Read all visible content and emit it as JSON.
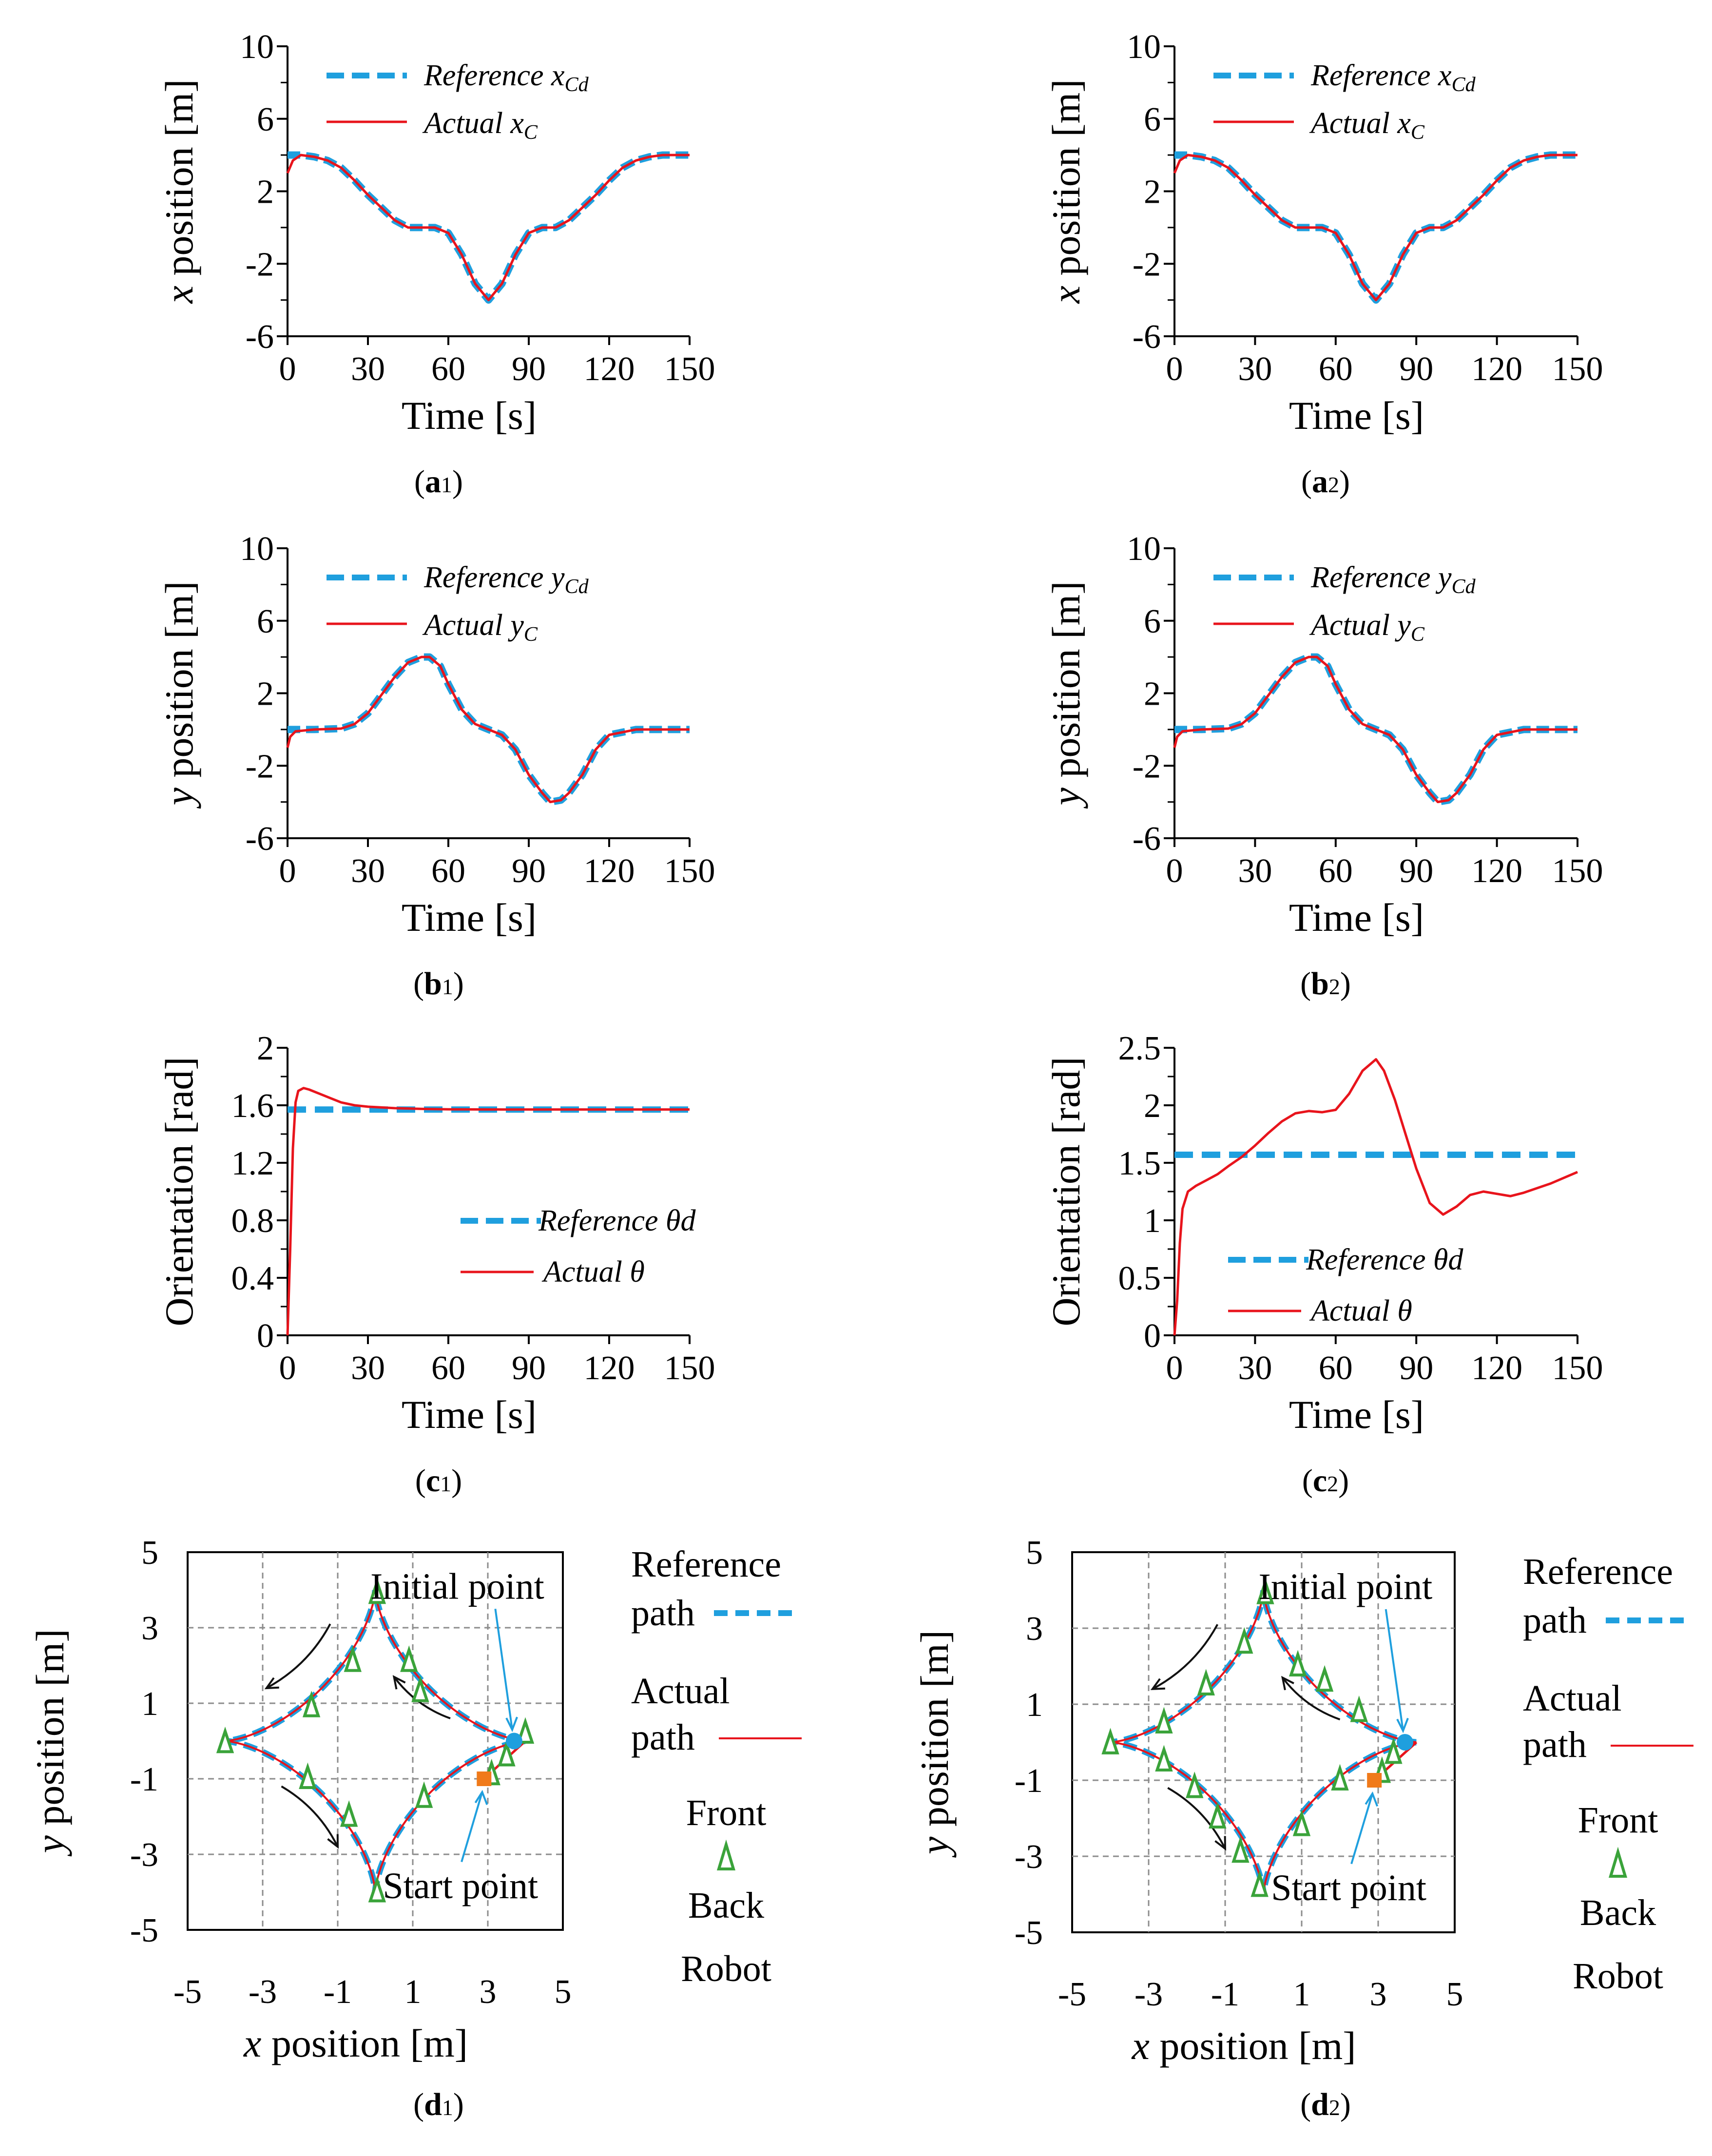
{
  "figure": {
    "colors": {
      "reference": "#1f9fde",
      "actual": "#e8141c",
      "robot_marker": "#3aa33a",
      "initial_point": "#1f9fde",
      "start_point": "#f07a1a",
      "grid": "#8c8c8c",
      "arrow": "#111111"
    }
  },
  "chart_data": [
    {
      "id": "a1",
      "type": "line",
      "caption_letter": "a",
      "caption_sub": "1",
      "xlabel": "Time [s]",
      "ylabel_var": "x",
      "ylabel_rest": " position [m]",
      "xlim": [
        0,
        150
      ],
      "ylim": [
        -6,
        10
      ],
      "xticks": [
        "0",
        "30",
        "60",
        "90",
        "120",
        "150"
      ],
      "yticks": [
        "-6",
        "-2",
        "2",
        "6",
        "10"
      ],
      "legend": {
        "reference": "Reference",
        "reference_sym": "x",
        "reference_sub": "Cd",
        "actual": "Actual",
        "actual_sym": "x",
        "actual_sub": "C"
      },
      "series": [
        {
          "name": "Reference x_Cd",
          "style": "dashed",
          "x": [
            0,
            5,
            10,
            15,
            20,
            25,
            30,
            35,
            40,
            45,
            50,
            55,
            60,
            65,
            70,
            75,
            80,
            85,
            90,
            95,
            100,
            105,
            110,
            115,
            120,
            125,
            130,
            135,
            140,
            145,
            150
          ],
          "y": [
            4,
            4,
            3.9,
            3.7,
            3.3,
            2.6,
            1.8,
            1.1,
            0.4,
            0,
            0,
            0,
            -0.3,
            -1.5,
            -3.1,
            -4,
            -3.1,
            -1.5,
            -0.3,
            0,
            0,
            0.4,
            1.1,
            1.8,
            2.6,
            3.3,
            3.7,
            3.9,
            4,
            4,
            4
          ]
        },
        {
          "name": "Actual x_C",
          "style": "solid",
          "x": [
            0,
            2,
            5,
            10,
            15,
            20,
            25,
            30,
            35,
            40,
            45,
            50,
            55,
            60,
            65,
            70,
            75,
            80,
            85,
            90,
            95,
            100,
            105,
            110,
            115,
            120,
            125,
            130,
            135,
            140,
            145,
            150
          ],
          "y": [
            3,
            3.7,
            4,
            3.9,
            3.7,
            3.3,
            2.6,
            1.8,
            1.1,
            0.4,
            0,
            0,
            0,
            -0.3,
            -1.5,
            -3.1,
            -4,
            -3.1,
            -1.5,
            -0.3,
            0,
            0,
            0.4,
            1.1,
            1.8,
            2.6,
            3.3,
            3.7,
            3.9,
            4,
            4,
            4
          ]
        }
      ]
    },
    {
      "id": "a2",
      "type": "line",
      "caption_letter": "a",
      "caption_sub": "2",
      "xlabel": "Time [s]",
      "ylabel_var": "x",
      "ylabel_rest": " position [m]",
      "xlim": [
        0,
        150
      ],
      "ylim": [
        -6,
        10
      ],
      "xticks": [
        "0",
        "30",
        "60",
        "90",
        "120",
        "150"
      ],
      "yticks": [
        "-6",
        "-2",
        "2",
        "6",
        "10"
      ],
      "legend": {
        "reference": "Reference",
        "reference_sym": "x",
        "reference_sub": "Cd",
        "actual": "Actual",
        "actual_sym": "x",
        "actual_sub": "C"
      },
      "series": [
        {
          "name": "Reference x_Cd",
          "style": "dashed",
          "x": [
            0,
            5,
            10,
            15,
            20,
            25,
            30,
            35,
            40,
            45,
            50,
            55,
            60,
            65,
            70,
            75,
            80,
            85,
            90,
            95,
            100,
            105,
            110,
            115,
            120,
            125,
            130,
            135,
            140,
            145,
            150
          ],
          "y": [
            4,
            4,
            3.9,
            3.7,
            3.3,
            2.6,
            1.8,
            1.1,
            0.4,
            0,
            0,
            0,
            -0.3,
            -1.5,
            -3.1,
            -4,
            -3.1,
            -1.5,
            -0.3,
            0,
            0,
            0.4,
            1.1,
            1.8,
            2.6,
            3.3,
            3.7,
            3.9,
            4,
            4,
            4
          ]
        },
        {
          "name": "Actual x_C",
          "style": "solid",
          "x": [
            0,
            2,
            5,
            10,
            15,
            20,
            25,
            30,
            35,
            40,
            45,
            50,
            55,
            60,
            65,
            70,
            75,
            80,
            85,
            90,
            95,
            100,
            105,
            110,
            115,
            120,
            125,
            130,
            135,
            140,
            145,
            150
          ],
          "y": [
            3,
            3.7,
            4,
            3.9,
            3.7,
            3.3,
            2.6,
            1.8,
            1.1,
            0.4,
            0,
            0,
            0,
            -0.3,
            -1.5,
            -3.1,
            -4,
            -3.1,
            -1.5,
            -0.3,
            0,
            0,
            0.4,
            1.1,
            1.8,
            2.6,
            3.3,
            3.7,
            3.9,
            4,
            4,
            4
          ]
        }
      ]
    },
    {
      "id": "b1",
      "type": "line",
      "caption_letter": "b",
      "caption_sub": "1",
      "xlabel": "Time [s]",
      "ylabel_var": "y",
      "ylabel_rest": " position [m]",
      "xlim": [
        0,
        150
      ],
      "ylim": [
        -6,
        10
      ],
      "xticks": [
        "0",
        "30",
        "60",
        "90",
        "120",
        "150"
      ],
      "yticks": [
        "-6",
        "-2",
        "2",
        "6",
        "10"
      ],
      "legend": {
        "reference": "Reference",
        "reference_sym": "y",
        "reference_sub": "Cd",
        "actual": "Actual",
        "actual_sym": "y",
        "actual_sub": "C"
      },
      "series": [
        {
          "name": "Reference y_Cd",
          "style": "dashed",
          "x": [
            0,
            10,
            20,
            25,
            30,
            35,
            40,
            45,
            50,
            53,
            57,
            60,
            65,
            70,
            75,
            80,
            85,
            90,
            95,
            98,
            102,
            105,
            110,
            115,
            120,
            130,
            140,
            150
          ],
          "y": [
            0,
            0,
            0.05,
            0.3,
            0.9,
            1.9,
            2.9,
            3.7,
            4,
            4,
            3.5,
            2.5,
            1.1,
            0.3,
            0,
            -0.3,
            -1.1,
            -2.5,
            -3.5,
            -4,
            -3.9,
            -3.5,
            -2.5,
            -1.1,
            -0.3,
            0,
            0,
            0
          ]
        },
        {
          "name": "Actual y_C",
          "style": "solid",
          "x": [
            0,
            1,
            3,
            10,
            20,
            25,
            30,
            35,
            40,
            45,
            50,
            53,
            57,
            60,
            65,
            70,
            75,
            80,
            85,
            90,
            95,
            98,
            102,
            105,
            110,
            115,
            120,
            130,
            140,
            150
          ],
          "y": [
            -1,
            -0.4,
            -0.1,
            0,
            0.05,
            0.3,
            0.9,
            1.9,
            2.9,
            3.7,
            4,
            4,
            3.5,
            2.5,
            1.1,
            0.3,
            0,
            -0.3,
            -1.1,
            -2.5,
            -3.5,
            -4,
            -3.9,
            -3.5,
            -2.5,
            -1.1,
            -0.3,
            0,
            0,
            0
          ]
        }
      ]
    },
    {
      "id": "b2",
      "type": "line",
      "caption_letter": "b",
      "caption_sub": "2",
      "xlabel": "Time [s]",
      "ylabel_var": "y",
      "ylabel_rest": " position [m]",
      "xlim": [
        0,
        150
      ],
      "ylim": [
        -6,
        10
      ],
      "xticks": [
        "0",
        "30",
        "60",
        "90",
        "120",
        "150"
      ],
      "yticks": [
        "-6",
        "-2",
        "2",
        "6",
        "10"
      ],
      "legend": {
        "reference": "Reference",
        "reference_sym": "y",
        "reference_sub": "Cd",
        "actual": "Actual",
        "actual_sym": "y",
        "actual_sub": "C"
      },
      "series": [
        {
          "name": "Reference y_Cd",
          "style": "dashed",
          "x": [
            0,
            10,
            20,
            25,
            30,
            35,
            40,
            45,
            50,
            53,
            57,
            60,
            65,
            70,
            75,
            80,
            85,
            90,
            95,
            98,
            102,
            105,
            110,
            115,
            120,
            130,
            140,
            150
          ],
          "y": [
            0,
            0,
            0.05,
            0.3,
            0.9,
            1.9,
            2.9,
            3.7,
            4,
            4,
            3.5,
            2.5,
            1.1,
            0.3,
            0,
            -0.3,
            -1.1,
            -2.5,
            -3.5,
            -4,
            -3.9,
            -3.5,
            -2.5,
            -1.1,
            -0.3,
            0,
            0,
            0
          ]
        },
        {
          "name": "Actual y_C",
          "style": "solid",
          "x": [
            0,
            1,
            3,
            10,
            20,
            25,
            30,
            35,
            40,
            45,
            50,
            53,
            57,
            60,
            65,
            70,
            75,
            80,
            85,
            90,
            95,
            98,
            102,
            105,
            110,
            115,
            120,
            130,
            140,
            150
          ],
          "y": [
            -1,
            -0.4,
            -0.1,
            0,
            0.05,
            0.3,
            0.9,
            1.9,
            2.9,
            3.7,
            4,
            4,
            3.5,
            2.5,
            1.1,
            0.3,
            0,
            -0.3,
            -1.1,
            -2.5,
            -3.5,
            -4,
            -3.9,
            -3.5,
            -2.5,
            -1.1,
            -0.3,
            0,
            0,
            0
          ]
        }
      ]
    },
    {
      "id": "c1",
      "type": "line",
      "caption_letter": "c",
      "caption_sub": "1",
      "xlabel": "Time [s]",
      "ylabel": "Orientation [rad]",
      "xlim": [
        0,
        150
      ],
      "ylim": [
        0,
        2
      ],
      "xticks": [
        "0",
        "30",
        "60",
        "90",
        "120",
        "150"
      ],
      "yticks": [
        "0",
        "0.4",
        "0.8",
        "1.2",
        "1.6",
        "2"
      ],
      "legend": {
        "reference": "Reference θd",
        "actual": "Actual θ"
      },
      "series": [
        {
          "name": "Reference θd",
          "style": "dashed",
          "x": [
            0,
            150
          ],
          "y": [
            1.57,
            1.57
          ]
        },
        {
          "name": "Actual θ",
          "style": "solid",
          "x": [
            0,
            1,
            2,
            3,
            4,
            6,
            8,
            12,
            16,
            20,
            25,
            30,
            40,
            50,
            60,
            80,
            100,
            120,
            150
          ],
          "y": [
            0,
            0.6,
            1.3,
            1.62,
            1.7,
            1.72,
            1.71,
            1.68,
            1.65,
            1.62,
            1.6,
            1.59,
            1.58,
            1.575,
            1.572,
            1.571,
            1.571,
            1.571,
            1.571
          ]
        }
      ]
    },
    {
      "id": "c2",
      "type": "line",
      "caption_letter": "c",
      "caption_sub": "2",
      "xlabel": "Time [s]",
      "ylabel": "Orientation [rad]",
      "xlim": [
        0,
        150
      ],
      "ylim": [
        0,
        2.5
      ],
      "xticks": [
        "0",
        "30",
        "60",
        "90",
        "120",
        "150"
      ],
      "yticks": [
        "0",
        "0.5",
        "1",
        "1.5",
        "2",
        "2.5"
      ],
      "legend": {
        "reference": "Reference θd",
        "actual": "Actual θ"
      },
      "series": [
        {
          "name": "Reference θd",
          "style": "dashed",
          "x": [
            0,
            150
          ],
          "y": [
            1.57,
            1.57
          ]
        },
        {
          "name": "Actual θ",
          "style": "solid",
          "x": [
            0,
            1,
            2,
            3,
            5,
            8,
            12,
            16,
            20,
            25,
            30,
            35,
            40,
            45,
            50,
            55,
            60,
            65,
            70,
            75,
            78,
            82,
            86,
            90,
            95,
            100,
            105,
            110,
            115,
            120,
            125,
            130,
            140,
            150
          ],
          "y": [
            0,
            0.3,
            0.8,
            1.1,
            1.25,
            1.3,
            1.35,
            1.4,
            1.47,
            1.55,
            1.65,
            1.76,
            1.86,
            1.93,
            1.95,
            1.94,
            1.96,
            2.1,
            2.3,
            2.4,
            2.3,
            2.05,
            1.75,
            1.45,
            1.15,
            1.05,
            1.12,
            1.22,
            1.25,
            1.23,
            1.21,
            1.24,
            1.32,
            1.42
          ]
        }
      ]
    },
    {
      "id": "d1",
      "type": "line",
      "caption_letter": "d",
      "caption_sub": "1",
      "xlabel_var": "x",
      "xlabel_rest": " position [m]",
      "ylabel_var": "y",
      "ylabel_rest": " position [m]",
      "xlim": [
        -5,
        5
      ],
      "ylim": [
        -5,
        5
      ],
      "xticks": [
        "-5",
        "-3",
        "-1",
        "1",
        "3",
        "5"
      ],
      "yticks": [
        "-5",
        "-3",
        "-1",
        "1",
        "3",
        "5"
      ],
      "curve": "astroid",
      "astroid_radius": 4,
      "start_point": [
        2.9,
        -1.0
      ],
      "initial_point": [
        3.7,
        0.0
      ],
      "legend": {
        "reference_l1": "Reference",
        "reference_l2": "path",
        "actual_l1": "Actual",
        "actual_l2": "path",
        "front": "Front",
        "back": "Back",
        "robot": "Robot"
      },
      "annotations": {
        "initial": "Initial point",
        "start": "Start point"
      },
      "markers": [
        [
          4,
          0.2
        ],
        [
          3.5,
          -0.4
        ],
        [
          3.1,
          -0.9
        ],
        [
          1.2,
          1.3
        ],
        [
          0.9,
          2.1
        ],
        [
          0.05,
          3.9
        ],
        [
          -0.6,
          2.1
        ],
        [
          -1.7,
          0.9
        ],
        [
          -4,
          -0.05
        ],
        [
          -1.8,
          -1.0
        ],
        [
          -0.7,
          -2.0
        ],
        [
          0.05,
          -4
        ],
        [
          1.3,
          -1.5
        ]
      ]
    },
    {
      "id": "d2",
      "type": "line",
      "caption_letter": "d",
      "caption_sub": "2",
      "xlabel_var": "x",
      "xlabel_rest": " position [m]",
      "ylabel_var": "y",
      "ylabel_rest": " position [m]",
      "xlim": [
        -5,
        5
      ],
      "ylim": [
        -5,
        5
      ],
      "xticks": [
        "-5",
        "-3",
        "-1",
        "1",
        "3",
        "5"
      ],
      "yticks": [
        "-5",
        "-3",
        "-1",
        "1",
        "3",
        "5"
      ],
      "curve": "astroid",
      "astroid_radius": 4,
      "start_point": [
        2.9,
        -1.0
      ],
      "initial_point": [
        3.7,
        0.0
      ],
      "legend": {
        "reference_l1": "Reference",
        "reference_l2": "path",
        "actual_l1": "Actual",
        "actual_l2": "path",
        "front": "Front",
        "back": "Back",
        "robot": "Robot"
      },
      "annotations": {
        "initial": "Initial point",
        "start": "Start point"
      },
      "markers": [
        [
          3.4,
          -0.3
        ],
        [
          3.1,
          -0.8
        ],
        [
          2.5,
          0.8
        ],
        [
          1.6,
          1.6
        ],
        [
          0.9,
          2.0
        ],
        [
          0.05,
          3.9
        ],
        [
          -0.5,
          2.6
        ],
        [
          -1.5,
          1.5
        ],
        [
          -2.6,
          0.5
        ],
        [
          -4,
          -0.05
        ],
        [
          -2.6,
          -0.5
        ],
        [
          -1.8,
          -1.2
        ],
        [
          -1.2,
          -2.0
        ],
        [
          -0.6,
          -2.9
        ],
        [
          -0.1,
          -3.8
        ],
        [
          1.0,
          -2.2
        ],
        [
          2.0,
          -1.0
        ]
      ]
    }
  ]
}
